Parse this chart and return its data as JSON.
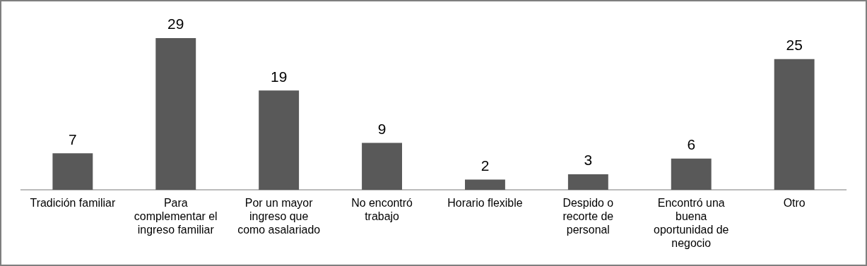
{
  "chart_data": {
    "type": "bar",
    "categories": [
      "Tradición familiar",
      "Para complementar el ingreso familiar",
      "Por un mayor ingreso que como asalariado",
      "No encontró trabajo",
      "Horario flexible",
      "Despido o recorte de personal",
      "Encontró una buena oportunidad de negocio",
      "Otro"
    ],
    "values": [
      7,
      29,
      19,
      9,
      2,
      3,
      6,
      25
    ],
    "color": "#595959",
    "tick_labels": "x",
    "data_labels": true,
    "grid": false,
    "legend": false
  }
}
